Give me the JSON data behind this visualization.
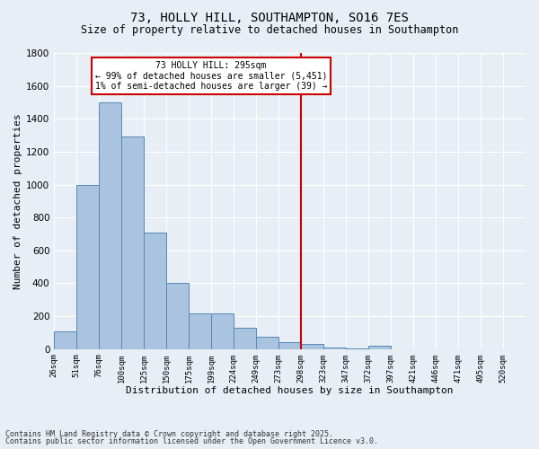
{
  "title_line1": "73, HOLLY HILL, SOUTHAMPTON, SO16 7ES",
  "title_line2": "Size of property relative to detached houses in Southampton",
  "xlabel": "Distribution of detached houses by size in Southampton",
  "ylabel": "Number of detached properties",
  "bin_labels": [
    "26sqm",
    "51sqm",
    "76sqm",
    "100sqm",
    "125sqm",
    "150sqm",
    "175sqm",
    "199sqm",
    "224sqm",
    "249sqm",
    "273sqm",
    "298sqm",
    "323sqm",
    "347sqm",
    "372sqm",
    "397sqm",
    "421sqm",
    "446sqm",
    "471sqm",
    "495sqm",
    "520sqm"
  ],
  "bar_values": [
    110,
    1000,
    1500,
    1290,
    710,
    400,
    215,
    215,
    130,
    75,
    40,
    30,
    10,
    5,
    20,
    0,
    0,
    0,
    0,
    0,
    0
  ],
  "bar_color": "#aac4e0",
  "bar_edge_color": "#5589b8",
  "background_color": "#e8eef5",
  "grid_color": "#ffffff",
  "vline_color": "#cc0000",
  "annotation_text": "73 HOLLY HILL: 295sqm\n← 99% of detached houses are smaller (5,451)\n1% of semi-detached houses are larger (39) →",
  "annotation_box_color": "#ffffff",
  "annotation_box_edge_color": "#cc0000",
  "ylim": [
    0,
    1800
  ],
  "yticks": [
    0,
    200,
    400,
    600,
    800,
    1000,
    1200,
    1400,
    1600,
    1800
  ],
  "footnote_line1": "Contains HM Land Registry data © Crown copyright and database right 2025.",
  "footnote_line2": "Contains public sector information licensed under the Open Government Licence v3.0."
}
